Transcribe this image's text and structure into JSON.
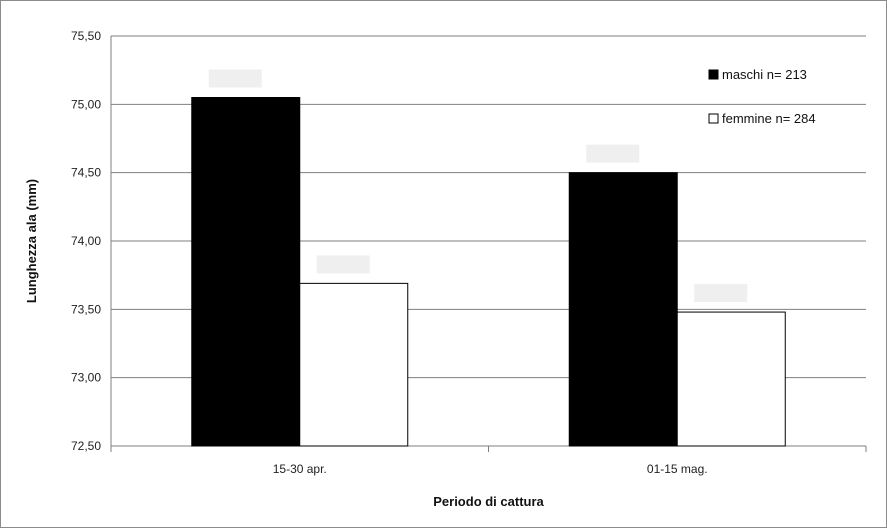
{
  "chart_data": {
    "type": "bar",
    "title": "",
    "xlabel": "Periodo di cattura",
    "ylabel": "Lunghezza ala (mm)",
    "ylim": [
      72.5,
      75.5
    ],
    "yticks": [
      "72,50",
      "73,00",
      "73,50",
      "74,00",
      "74,50",
      "75,00",
      "75,50"
    ],
    "yticks_values": [
      72.5,
      73.0,
      73.5,
      74.0,
      74.5,
      75.0,
      75.5
    ],
    "categories": [
      "15-30 apr.",
      "01-15 mag."
    ],
    "series": [
      {
        "name": "maschi n= 213",
        "values": [
          75.05,
          74.5
        ],
        "color": "#000000"
      },
      {
        "name": "femmine n= 284",
        "values": [
          73.69,
          73.48
        ],
        "color": "#ffffff"
      }
    ],
    "grid": true,
    "legend_position": "top-right",
    "colors": {
      "gridline": "#7f7f7f",
      "bar_border": "#000000",
      "label_box": "#efefef"
    }
  }
}
